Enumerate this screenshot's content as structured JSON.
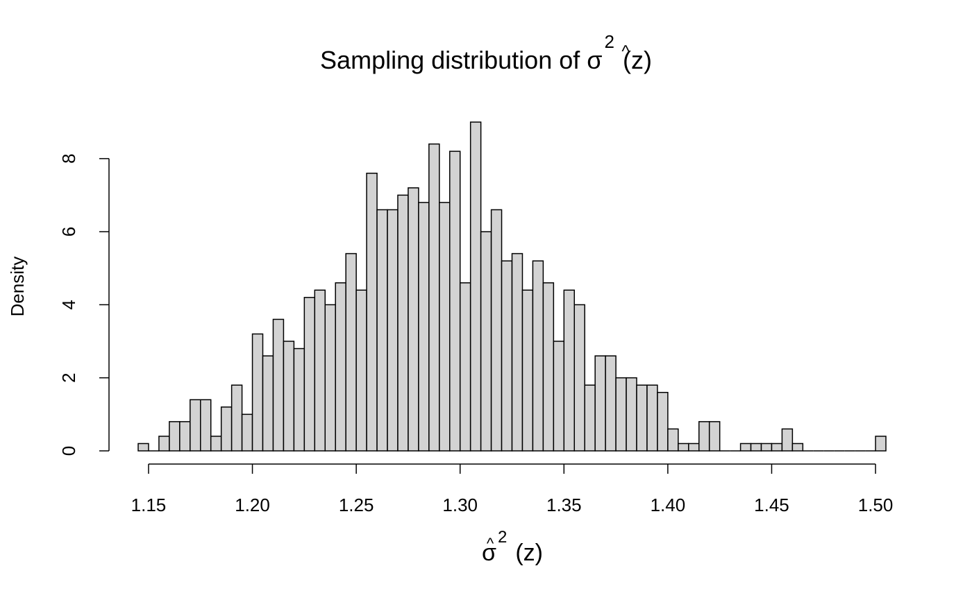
{
  "chart_data": {
    "type": "bar",
    "subtype": "histogram",
    "title": "Sampling distribution of σ̂² (z)",
    "title_parts": {
      "prefix": "Sampling distribution of ",
      "symbol": "σ",
      "hat": "^",
      "sup": "2",
      "suffix": "(z)"
    },
    "xlabel": "σ̂² (z)",
    "xlabel_parts": {
      "symbol": "σ",
      "hat": "^",
      "sup": "2",
      "suffix": "(z)"
    },
    "ylabel": "Density",
    "xlim": [
      1.145,
      1.505
    ],
    "ylim": [
      0,
      9
    ],
    "bin_width": 0.005,
    "bin_start": 1.145,
    "densities": [
      0.2,
      0,
      0.4,
      0.8,
      0.8,
      1.4,
      1.4,
      0.4,
      1.2,
      1.8,
      1.0,
      3.2,
      2.6,
      3.6,
      3.0,
      2.8,
      4.2,
      4.4,
      4.0,
      4.6,
      5.4,
      4.4,
      7.6,
      6.6,
      6.6,
      7.0,
      7.2,
      6.8,
      8.4,
      6.8,
      8.2,
      4.6,
      9.0,
      6.0,
      6.6,
      5.2,
      5.4,
      4.4,
      5.2,
      4.6,
      3.0,
      4.4,
      4.0,
      1.8,
      2.6,
      2.6,
      2.0,
      2.0,
      1.8,
      1.8,
      1.6,
      0.6,
      0.2,
      0.2,
      0.8,
      0.8,
      0,
      0,
      0.2,
      0.2,
      0.2,
      0.2,
      0.6,
      0.2,
      0,
      0,
      0,
      0,
      0,
      0,
      0,
      0.4
    ],
    "x_ticks": [
      1.15,
      1.2,
      1.25,
      1.3,
      1.35,
      1.4,
      1.45,
      1.5
    ],
    "x_tick_labels": [
      "1.15",
      "1.20",
      "1.25",
      "1.30",
      "1.35",
      "1.40",
      "1.45",
      "1.50"
    ],
    "y_ticks": [
      0,
      2,
      4,
      6,
      8
    ],
    "y_tick_labels": [
      "0",
      "2",
      "4",
      "6",
      "8"
    ],
    "grid": false,
    "colors": {
      "bar_fill": "#d3d3d3",
      "bar_stroke": "#000000"
    }
  }
}
